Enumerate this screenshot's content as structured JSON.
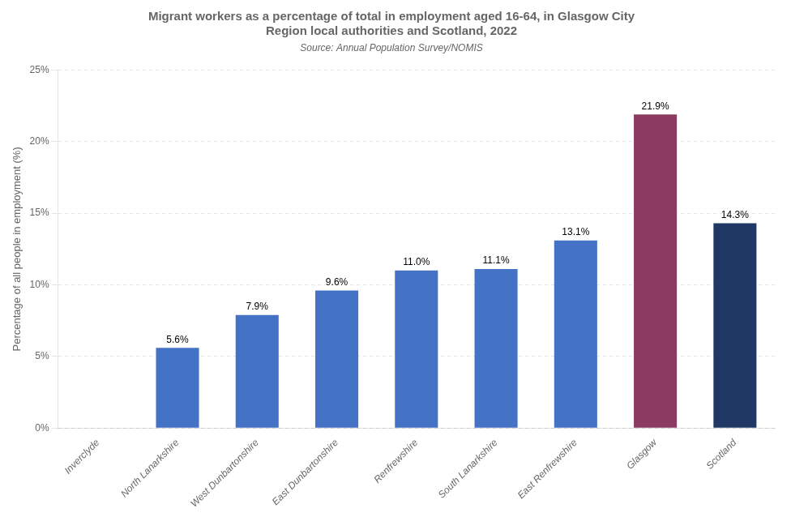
{
  "chart_data": {
    "type": "bar",
    "title": [
      "Migrant workers as a percentage of total in employment aged 16-64, in Glasgow City",
      "Region local authorities and Scotland, 2022"
    ],
    "subtitle": "Source: Annual Population Survey/NOMIS",
    "categories": [
      "Inverclyde",
      "North Lanarkshire",
      "West Dunbartonshire",
      "East Dunbartonshire",
      "Renfrewshire",
      "South Lanarkshire",
      "East Renfrewshire",
      "Glasgow",
      "Scotland"
    ],
    "values": [
      0.0,
      5.6,
      7.9,
      9.6,
      11.0,
      11.1,
      13.1,
      21.9,
      14.3
    ],
    "value_labels": [
      null,
      "5.6%",
      "7.9%",
      "9.6%",
      "11.0%",
      "11.1%",
      "13.1%",
      "21.9%",
      "14.3%"
    ],
    "data_labels": true,
    "colors": [
      "#4472C4",
      "#4472C4",
      "#4472C4",
      "#4472C4",
      "#4472C4",
      "#4472C4",
      "#4472C4",
      "#8B3A62",
      "#1F3864"
    ],
    "ylabel": "Percentage of all people in employment (%)",
    "ylim": [
      0,
      25
    ],
    "yticks": [
      {
        "value": 0,
        "label": "0%"
      },
      {
        "value": 5,
        "label": "5%"
      },
      {
        "value": 10,
        "label": "10%"
      },
      {
        "value": 15,
        "label": "15%"
      },
      {
        "value": 20,
        "label": "20%"
      },
      {
        "value": 25,
        "label": "25%"
      }
    ],
    "grid": true
  }
}
